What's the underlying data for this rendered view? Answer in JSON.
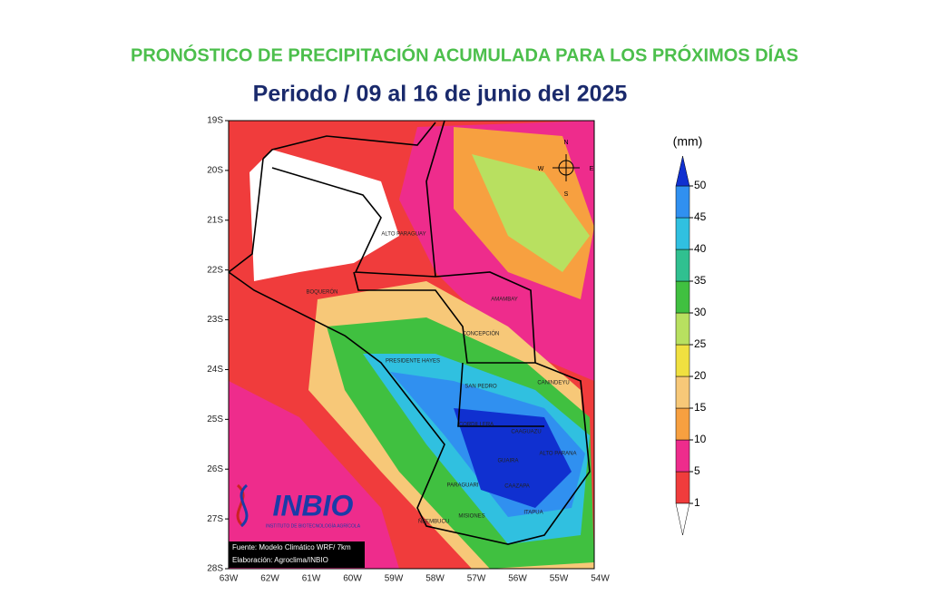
{
  "header": {
    "title": "PRONÓSTICO DE PRECIPITACIÓN ACUMULADA PARA LOS PRÓXIMOS DÍAS",
    "subtitle": "Periodo / 09  al 16 de junio del 2025"
  },
  "map": {
    "lat_labels": [
      "19S",
      "20S",
      "21S",
      "22S",
      "23S",
      "24S",
      "25S",
      "26S",
      "27S",
      "28S"
    ],
    "lon_labels": [
      "63W",
      "62W",
      "61W",
      "60W",
      "59W",
      "58W",
      "57W",
      "56W",
      "55W",
      "54W"
    ],
    "compass": [
      "N",
      "S",
      "E",
      "W"
    ],
    "departments": [
      "ALTO PARAGUAY",
      "BOQUERÓN",
      "AMAMBAY",
      "CONCEPCIÓN",
      "PRESIDENTE HAYES",
      "SAN PEDRO",
      "CANINDEYU",
      "CORDILLERA",
      "CAAGUAZU",
      "ALTO PARANA",
      "GUAIRA",
      "PARAGUARI",
      "CAAZAPA",
      "ÑEEMBUCU",
      "MISIONES",
      "ITAPUA"
    ],
    "logo": {
      "name": "INBIO",
      "caption": "INSTITUTO DE BIOTECNOLOGÍA AGRÍCOLA"
    },
    "source": [
      "Fuente: Modelo Climático WRF/ 7km",
      "Elaboración: Agroclima/INBIO"
    ]
  },
  "legend": {
    "unit": "(mm)",
    "ticks": [
      1,
      5,
      10,
      15,
      20,
      25,
      30,
      35,
      40,
      45,
      50
    ],
    "colors": [
      "#f03c3c",
      "#ee2c8c",
      "#f7a040",
      "#f7c878",
      "#f0e040",
      "#b8e060",
      "#40c040",
      "#30c090",
      "#30c0e0",
      "#3090f0",
      "#1030d0"
    ]
  }
}
